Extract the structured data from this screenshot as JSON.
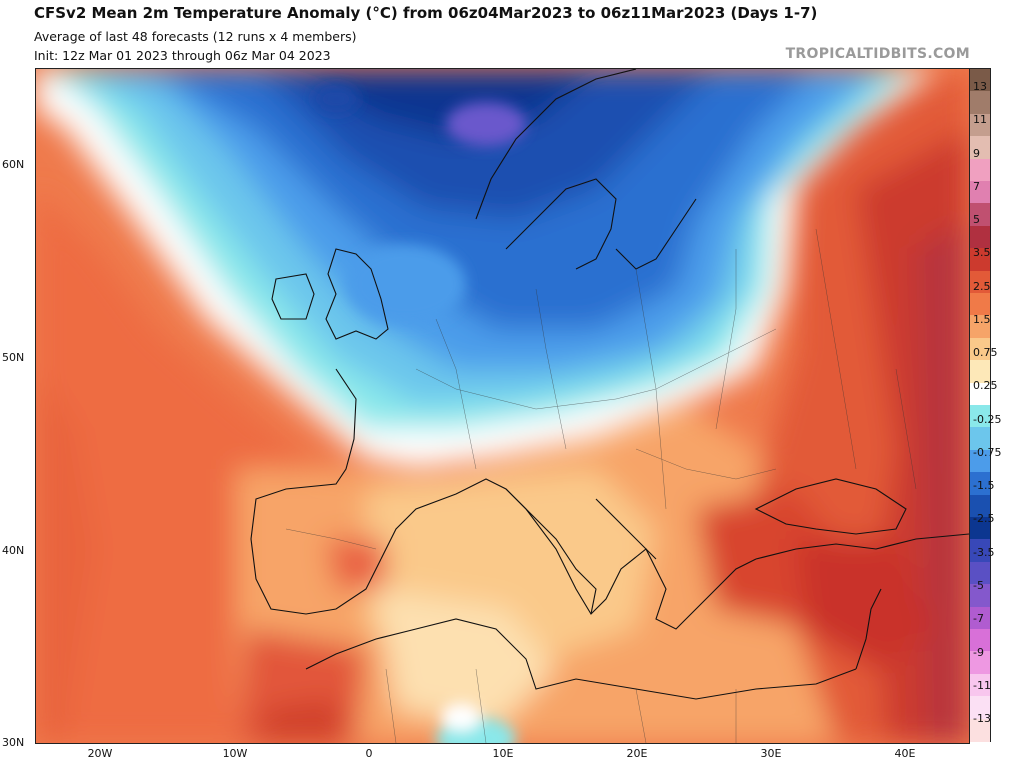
{
  "header": {
    "title": "CFSv2 Mean 2m Temperature Anomaly (°C) from 06z04Mar2023 to 06z11Mar2023 (Days 1-7)",
    "subtitle_1": "Average of last 48 forecasts (12 runs x 4 members)",
    "subtitle_2": "Init: 12z Mar 01 2023 through 06z Mar 04 2023",
    "credit": "TROPICALTIDBITS.COM"
  },
  "axes": {
    "lat_labels": [
      "60N",
      "50N",
      "40N",
      "30N"
    ],
    "lon_labels": [
      "20W",
      "10W",
      "0",
      "10E",
      "20E",
      "30E",
      "40E"
    ]
  },
  "colorbar": {
    "labels": [
      "13",
      "11",
      "9",
      "7",
      "5",
      "3.5",
      "2.5",
      "1.5",
      "0.75",
      "0.25",
      "-0.25",
      "-0.75",
      "-1.5",
      "-2.5",
      "-3.5",
      "-5",
      "-7",
      "-9",
      "-11",
      "-13"
    ],
    "colors": [
      "#7a5a48",
      "#a07c6a",
      "#c49e8e",
      "#e3bdb1",
      "#f0a0c0",
      "#e080b0",
      "#c05070",
      "#b03040",
      "#cc3a2e",
      "#e25a38",
      "#f07a48",
      "#f6a468",
      "#fac98a",
      "#fde8b8",
      "#ffffff",
      "#8ae8ea",
      "#6cc6ec",
      "#4c9cea",
      "#2c70d0",
      "#1a50b0",
      "#0c3690",
      "#3848b8",
      "#5a50c4",
      "#8458cc",
      "#b05cd0",
      "#d870d8",
      "#ee98e2",
      "#f8c6ee",
      "#fbe0f4",
      "#fce0e0"
    ]
  },
  "map": {
    "projection": "cylindrical",
    "region": "Europe / North Africa",
    "field": "2m temperature anomaly"
  }
}
